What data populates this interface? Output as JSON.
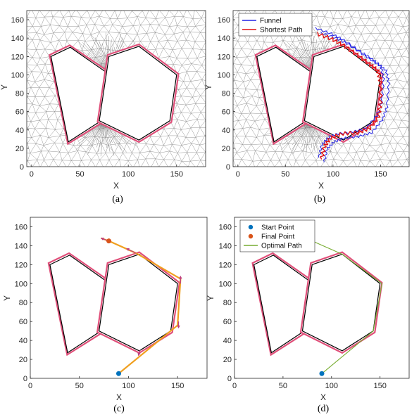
{
  "figure": {
    "captions": [
      "(a)",
      "(b)",
      "(c)",
      "(d)"
    ]
  },
  "colors": {
    "obstacle": "#000000",
    "inflated": "#e0507a",
    "mesh": "#8a8a8a",
    "funnel": "#2323e6",
    "shortest": "#e01010",
    "path_c": "#f0a020",
    "arrow_c": "#c04080",
    "start": "#0072bd",
    "final": "#d95319",
    "optimal": "#77ac30"
  },
  "chart_data": [
    {
      "type": "line",
      "panel": "a",
      "xlabel": "X",
      "ylabel": "Y",
      "xlim": [
        -5,
        180
      ],
      "ylim": [
        0,
        170
      ],
      "xticks": [
        0,
        50,
        100,
        150
      ],
      "yticks": [
        0,
        20,
        40,
        60,
        80,
        100,
        120,
        140,
        160
      ],
      "grid": "triangular mesh",
      "legend": [],
      "obstacles": [
        [
          [
            20,
            120
          ],
          [
            40,
            130
          ],
          [
            81,
            100
          ],
          [
            72,
            50
          ],
          [
            38,
            27
          ]
        ],
        [
          [
            70,
            50
          ],
          [
            80,
            120
          ],
          [
            111,
            131
          ],
          [
            150,
            100
          ],
          [
            143,
            50
          ],
          [
            111,
            29
          ]
        ]
      ]
    },
    {
      "type": "line",
      "panel": "b",
      "xlabel": "X",
      "ylabel": "Y",
      "xlim": [
        -5,
        180
      ],
      "ylim": [
        0,
        170
      ],
      "xticks": [
        0,
        50,
        100,
        150
      ],
      "yticks": [
        0,
        20,
        40,
        60,
        80,
        100,
        120,
        140,
        160
      ],
      "grid": "triangular mesh",
      "legend": [
        "Funnel",
        "Shortest Path"
      ],
      "series": [
        {
          "name": "Funnel",
          "x": [
            83,
            100,
            113,
            130,
            143,
            152,
            155,
            153,
            148,
            137,
            123,
            107,
            97,
            90,
            87
          ],
          "y": [
            147,
            141,
            134,
            122,
            113,
            106,
            92,
            66,
            52,
            38,
            34,
            32,
            28,
            20,
            6
          ]
        },
        {
          "name": "Shortest Path",
          "x": [
            83,
            99,
            111,
            125,
            138,
            147,
            150,
            150,
            148,
            139,
            126,
            110,
            97,
            91,
            88
          ],
          "y": [
            145,
            139,
            132,
            122,
            112,
            105,
            92,
            70,
            55,
            42,
            37,
            36,
            31,
            22,
            8
          ]
        }
      ],
      "obstacles": [
        [
          [
            20,
            120
          ],
          [
            40,
            130
          ],
          [
            81,
            100
          ],
          [
            72,
            50
          ],
          [
            38,
            27
          ]
        ],
        [
          [
            70,
            50
          ],
          [
            80,
            120
          ],
          [
            111,
            131
          ],
          [
            150,
            100
          ],
          [
            143,
            50
          ],
          [
            111,
            29
          ]
        ]
      ]
    },
    {
      "type": "line",
      "panel": "c",
      "xlabel": "X",
      "ylabel": "Y",
      "xlim": [
        0,
        180
      ],
      "ylim": [
        0,
        170
      ],
      "xticks": [
        0,
        50,
        100,
        150
      ],
      "yticks": [
        0,
        20,
        40,
        60,
        80,
        100,
        120,
        140,
        160
      ],
      "grid": "off",
      "legend": [],
      "series": [
        {
          "name": "",
          "x": [
            72,
            80,
            108,
            153,
            150,
            90
          ],
          "y": [
            148,
            145,
            132,
            105,
            56,
            5
          ]
        }
      ],
      "start_point": [
        90,
        5
      ],
      "final_point": [
        80,
        145
      ],
      "obstacles": [
        [
          [
            20,
            120
          ],
          [
            40,
            130
          ],
          [
            81,
            100
          ],
          [
            72,
            50
          ],
          [
            38,
            27
          ]
        ],
        [
          [
            70,
            50
          ],
          [
            80,
            120
          ],
          [
            111,
            131
          ],
          [
            150,
            100
          ],
          [
            143,
            50
          ],
          [
            111,
            29
          ]
        ]
      ]
    },
    {
      "type": "line",
      "panel": "d",
      "xlabel": "X",
      "ylabel": "Y",
      "xlim": [
        0,
        180
      ],
      "ylim": [
        0,
        170
      ],
      "xticks": [
        0,
        50,
        100,
        150
      ],
      "yticks": [
        0,
        20,
        40,
        60,
        80,
        100,
        120,
        140,
        160
      ],
      "grid": "off",
      "legend": [
        "Start Point",
        "Final Point",
        "Optimal Path"
      ],
      "series": [
        {
          "name": "Optimal Path",
          "x": [
            80,
            111,
            152,
            143,
            90
          ],
          "y": [
            145,
            131,
            100,
            50,
            5
          ]
        }
      ],
      "start_point": [
        90,
        5
      ],
      "final_point": [
        80,
        145
      ],
      "obstacles": [
        [
          [
            20,
            120
          ],
          [
            40,
            130
          ],
          [
            81,
            100
          ],
          [
            72,
            50
          ],
          [
            38,
            27
          ]
        ],
        [
          [
            70,
            50
          ],
          [
            80,
            120
          ],
          [
            111,
            131
          ],
          [
            150,
            100
          ],
          [
            143,
            50
          ],
          [
            111,
            29
          ]
        ]
      ]
    }
  ]
}
